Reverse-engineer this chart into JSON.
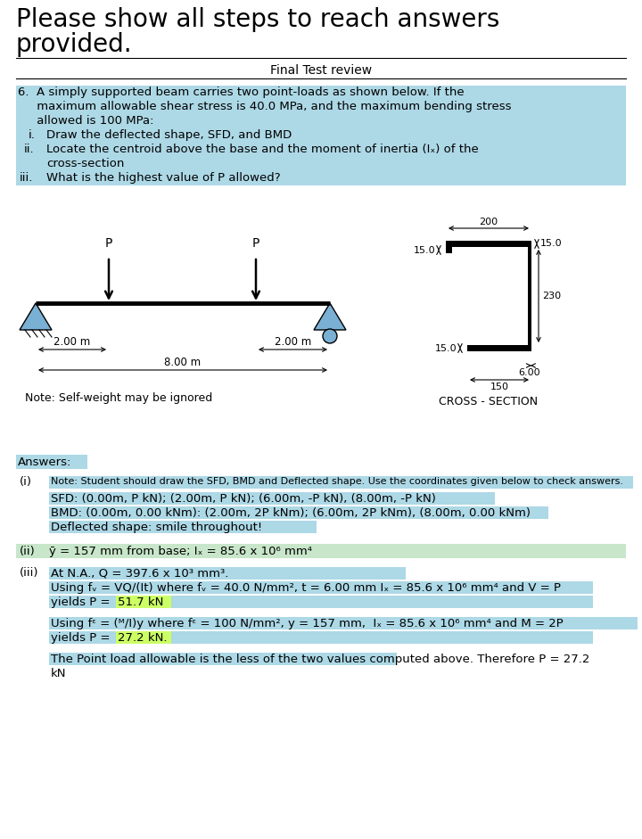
{
  "title_line1": "Please show all steps to reach answers",
  "title_line2": "provided.",
  "subtitle": "Final Test review",
  "q6_lines": [
    "6.  A simply supported beam carries two point-loads as shown below. If the",
    "     maximum allowable shear stress is 40.0 MPa, and the maximum bending stress",
    "     allowed is 100 MPa:"
  ],
  "sub_i": [
    "i.",
    "Draw the deflected shape, SFD, and BMD"
  ],
  "sub_ii_1": [
    "ii.",
    "Locate the centroid above the base and the moment of inertia (Iₓ) of the"
  ],
  "sub_ii_2": "        cross-section",
  "sub_iii": [
    "iii.",
    "What is the highest value of P allowed?"
  ],
  "note": "Note: Self-weight may be ignored",
  "cs_label": "CROSS - SECTION",
  "answers_header": "Answers:",
  "part_i_label": "(i)",
  "part_i_note": "Note: Student should draw the SFD, BMD and Deflected shape. Use the coordinates given below to check answers.",
  "sfd_line": "SFD: (0.00m, P kN); (2.00m, P kN); (6.00m, -P kN), (8.00m, -P kN)",
  "bmd_line": "BMD: (0.00m, 0.00 kNm): (2.00m, 2P kNm); (6.00m, 2P kNm), (8.00m, 0.00 kNm)",
  "def_line": "Deflected shape: smile throughout!",
  "part_ii_label": "(ii)",
  "part_ii_text": "ȳ = 157 mm from base; Iₓ = 85.6 x 10⁶ mm⁴",
  "part_iii_label": "(iii)",
  "iii_line1": "At N.A., Q = 397.6 x 10³ mm³.",
  "iii_line2": "Using fᵥ = VQ/(It) where fᵥ = 40.0 N/mm², t = 6.00 mm Iₓ = 85.6 x 10⁶ mm⁴ and V = P",
  "iii_line3": "yields P = 51.7 kN",
  "iii_line4": "Using fᵋ = (ᴹ/I)y where fᵋ = 100 N/mm², y = 157 mm,  Iₓ = 85.6 x 10⁶ mm⁴ and M = 2P",
  "iii_line5": "yields P = 27.2 kN.",
  "iii_line6a": "The Point load allowable is the less of the two values computed above. Therefore P = 27.2",
  "iii_line6b": "kN",
  "hc": "#add8e6",
  "hc_green": "#c8e6c9",
  "hc_yellow": "#ccff66",
  "hc_blue2": "#add8e6",
  "bg": "#ffffff"
}
